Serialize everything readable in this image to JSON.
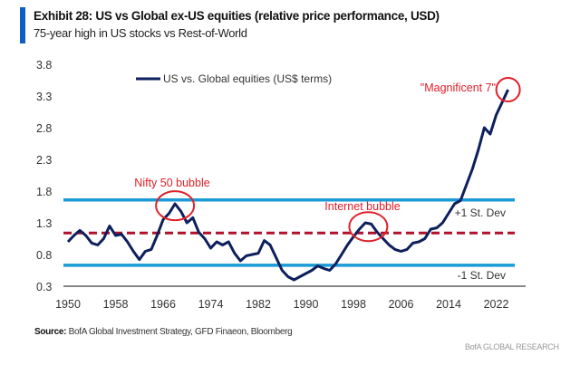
{
  "header": {
    "title": "Exhibit 28: US vs Global ex-US equities (relative price performance, USD)",
    "subtitle": "75-year high in US stocks vs Rest-of-World"
  },
  "footer": {
    "source_label": "Source:",
    "source_text": "BofA Global Investment Strategy, GFD Finaeon, Bloomberg",
    "credit": "BofA GLOBAL RESEARCH"
  },
  "colors": {
    "series": "#0d1f5c",
    "band": "#1a9ad6",
    "mean": "#b0112b",
    "annotation": "#e0202a"
  },
  "chart_data": {
    "type": "line",
    "title": "Exhibit 28: US vs Global ex-US equities (relative price performance, USD)",
    "legend": {
      "position": "top-center",
      "entries": [
        "US vs. Global equities (US$ terms)"
      ]
    },
    "ylim": [
      0.3,
      3.8
    ],
    "yticks": [
      "3.8",
      "3.3",
      "2.8",
      "2.3",
      "1.8",
      "1.3",
      "0.8",
      "0.3"
    ],
    "xticks": [
      "1950",
      "1958",
      "1966",
      "1974",
      "1982",
      "1990",
      "1998",
      "2006",
      "2014",
      "2022"
    ],
    "grid": false,
    "series": [
      {
        "name": "US vs. Global equities (US$ terms)",
        "x": [
          1950,
          1951,
          1952,
          1953,
          1954,
          1955,
          1956,
          1957,
          1958,
          1959,
          1960,
          1961,
          1962,
          1963,
          1964,
          1965,
          1966,
          1967,
          1968,
          1969,
          1970,
          1971,
          1972,
          1973,
          1974,
          1975,
          1976,
          1977,
          1978,
          1979,
          1980,
          1981,
          1982,
          1983,
          1984,
          1985,
          1986,
          1987,
          1988,
          1989,
          1990,
          1991,
          1992,
          1993,
          1994,
          1995,
          1996,
          1997,
          1998,
          1999,
          2000,
          2001,
          2002,
          2003,
          2004,
          2005,
          2006,
          2007,
          2008,
          2009,
          2010,
          2011,
          2012,
          2013,
          2014,
          2015,
          2016,
          2017,
          2018,
          2019,
          2020,
          2021,
          2022,
          2023,
          2024
        ],
        "y": [
          1.0,
          1.1,
          1.18,
          1.1,
          0.98,
          0.95,
          1.05,
          1.25,
          1.1,
          1.12,
          1.0,
          0.85,
          0.72,
          0.85,
          0.88,
          1.1,
          1.35,
          1.45,
          1.6,
          1.48,
          1.3,
          1.38,
          1.15,
          1.05,
          0.9,
          1.0,
          0.95,
          1.0,
          0.82,
          0.7,
          0.78,
          0.8,
          0.82,
          1.02,
          0.95,
          0.75,
          0.55,
          0.45,
          0.4,
          0.45,
          0.5,
          0.55,
          0.62,
          0.58,
          0.55,
          0.65,
          0.8,
          0.95,
          1.08,
          1.2,
          1.3,
          1.28,
          1.15,
          1.05,
          0.95,
          0.88,
          0.85,
          0.88,
          0.98,
          1.0,
          1.05,
          1.2,
          1.22,
          1.3,
          1.45,
          1.6,
          1.65,
          1.9,
          2.15,
          2.45,
          2.8,
          2.7,
          3.0,
          3.2,
          3.4
        ]
      }
    ],
    "reference_lines": [
      {
        "label": "+1 St. Dev",
        "value": 1.66,
        "style": "solid"
      },
      {
        "label": "",
        "value": 1.14,
        "style": "dashed"
      },
      {
        "label": "-1 St. Dev",
        "value": 0.63,
        "style": "solid"
      }
    ],
    "annotations": [
      {
        "text": "Nifty 50 bubble",
        "x": 1968,
        "y": 1.5
      },
      {
        "text": "Internet bubble",
        "x": 2000,
        "y": 1.2
      },
      {
        "text": "\"Magnificent 7\"",
        "x": 2024,
        "y": 3.4
      }
    ]
  }
}
